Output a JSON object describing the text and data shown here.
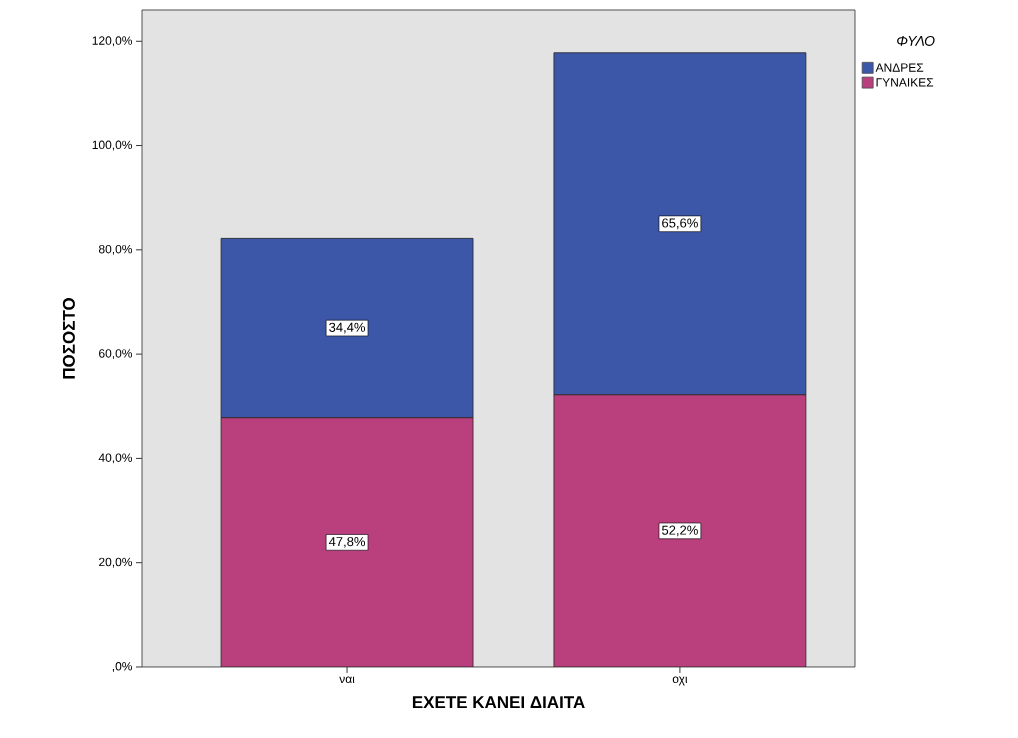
{
  "chart_data": {
    "type": "bar",
    "stacked": true,
    "xlabel": "ΕΧΕΤΕ ΚΑΝΕΙ ΔΙΑΙΤΑ",
    "ylabel": "ΠΟΣΟΣΤΟ",
    "legend_title": "ΦΥΛΟ",
    "legend": "top right",
    "categories": [
      "ναι",
      "οχι"
    ],
    "series": [
      {
        "name": "ΓΥΝΑΙΚΕΣ",
        "color": "#b93f7d",
        "values": [
          47.8,
          52.2
        ],
        "value_labels": [
          "47,8%",
          "52,2%"
        ]
      },
      {
        "name": "ΑΝΔΡΕΣ",
        "color": "#3d57a8",
        "values": [
          34.4,
          65.6
        ],
        "value_labels": [
          "34,4%",
          "65,6%"
        ]
      }
    ],
    "ylim": [
      0,
      126
    ],
    "yticks": [
      {
        "value": 0,
        "label": ",0%"
      },
      {
        "value": 20,
        "label": "20,0%"
      },
      {
        "value": 40,
        "label": "40,0%"
      },
      {
        "value": 60,
        "label": "60,0%"
      },
      {
        "value": 80,
        "label": "80,0%"
      },
      {
        "value": 100,
        "label": "100,0%"
      },
      {
        "value": 120,
        "label": "120,0%"
      }
    ]
  }
}
